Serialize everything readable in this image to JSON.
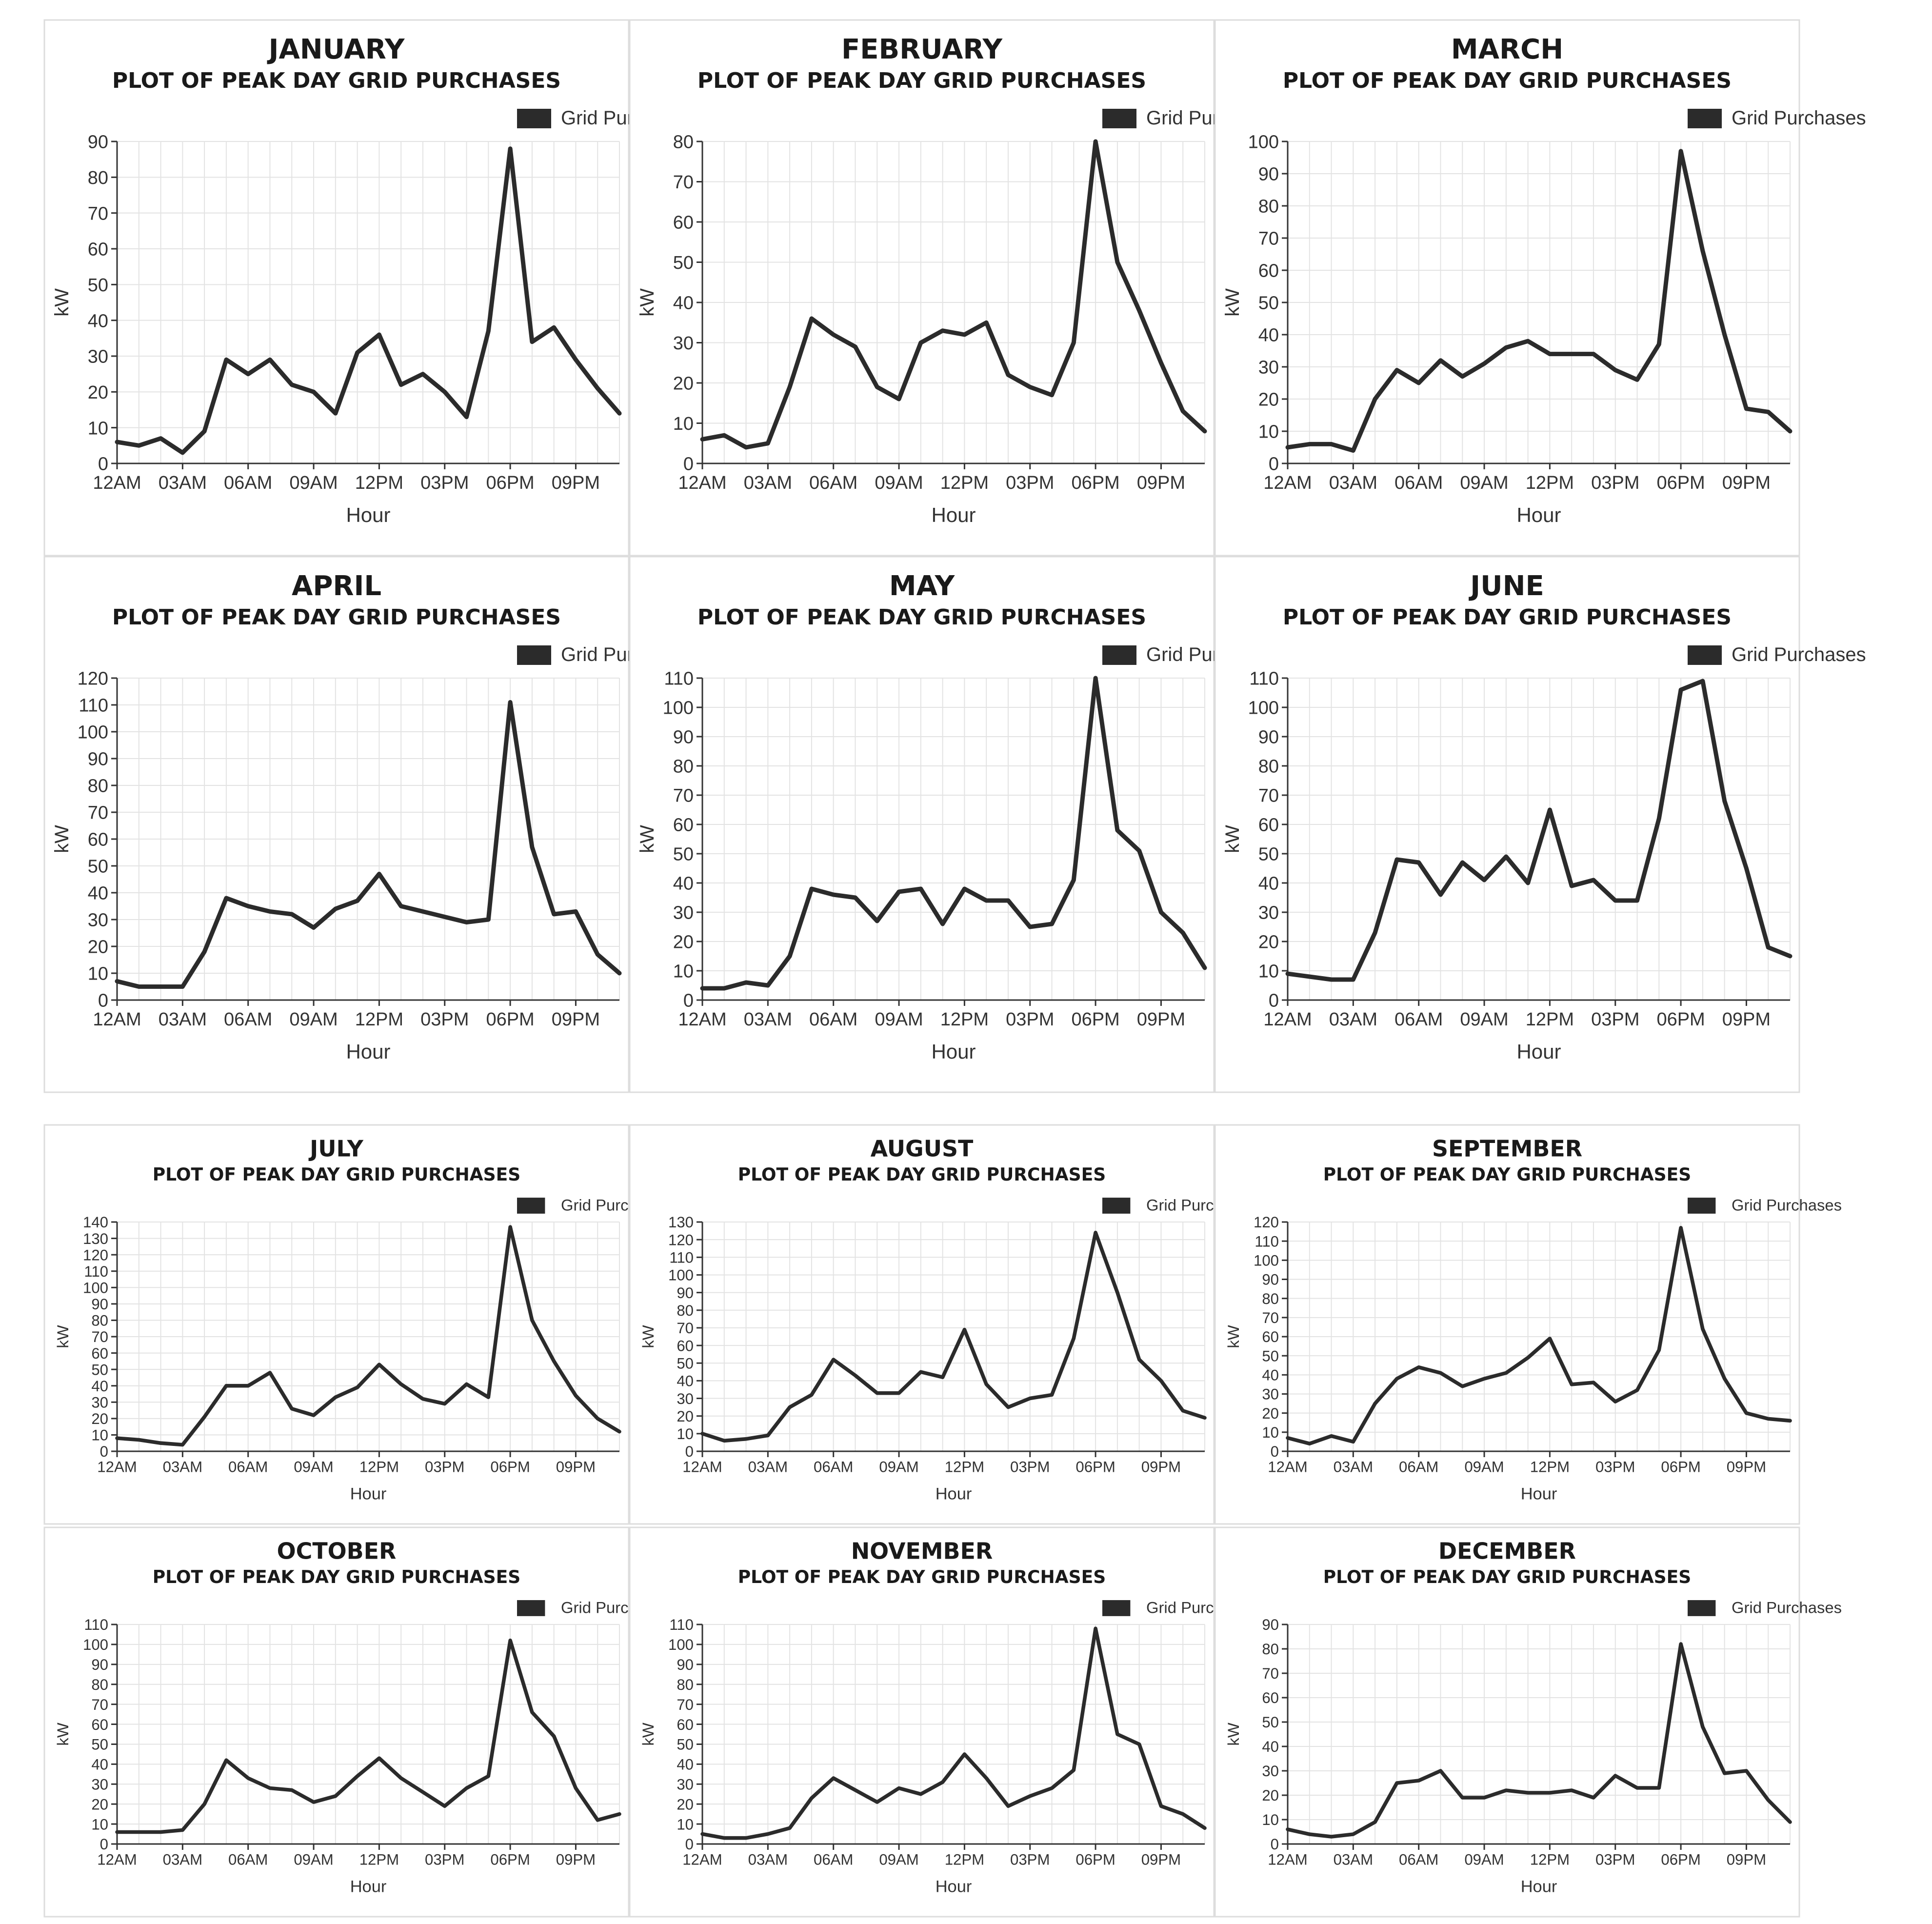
{
  "colors": {
    "line": "#2b2b2b",
    "grid": "#e3e3e3",
    "axis": "#333333",
    "frame": "#dddddd",
    "legend_swatch": "#2b2b2b"
  },
  "chart_data": [
    {
      "type": "line",
      "title": "JANUARY",
      "subtitle": "PLOT OF PEAK DAY GRID PURCHASES",
      "xlabel": "Hour",
      "ylabel": "kW",
      "legend": "Grid Purchases",
      "legend_position": "top-right",
      "ylim": [
        0,
        90
      ],
      "yticks": [
        0,
        10,
        20,
        30,
        40,
        50,
        60,
        70,
        80,
        90
      ],
      "xticks": [
        "12AM",
        "03AM",
        "06AM",
        "09AM",
        "12PM",
        "03PM",
        "06PM",
        "09PM"
      ],
      "values": [
        6,
        5,
        7,
        3,
        9,
        29,
        25,
        29,
        22,
        20,
        14,
        31,
        36,
        22,
        25,
        20,
        13,
        37,
        88,
        34,
        38,
        29,
        21,
        14
      ]
    },
    {
      "type": "line",
      "title": "FEBRUARY",
      "subtitle": "PLOT OF PEAK DAY GRID PURCHASES",
      "xlabel": "Hour",
      "ylabel": "kW",
      "legend": "Grid Purchases",
      "legend_position": "top-right",
      "ylim": [
        0,
        80
      ],
      "yticks": [
        0,
        10,
        20,
        30,
        40,
        50,
        60,
        70,
        80
      ],
      "xticks": [
        "12AM",
        "03AM",
        "06AM",
        "09AM",
        "12PM",
        "03PM",
        "06PM",
        "09PM"
      ],
      "values": [
        6,
        7,
        4,
        5,
        19,
        36,
        32,
        29,
        19,
        16,
        30,
        33,
        32,
        35,
        22,
        19,
        17,
        30,
        80,
        50,
        38,
        25,
        13,
        8
      ]
    },
    {
      "type": "line",
      "title": "MARCH",
      "subtitle": "PLOT OF PEAK DAY GRID PURCHASES",
      "xlabel": "Hour",
      "ylabel": "kW",
      "legend": "Grid Purchases",
      "legend_position": "top-right",
      "ylim": [
        0,
        100
      ],
      "yticks": [
        0,
        10,
        20,
        30,
        40,
        50,
        60,
        70,
        80,
        90,
        100
      ],
      "xticks": [
        "12AM",
        "03AM",
        "06AM",
        "09AM",
        "12PM",
        "03PM",
        "06PM",
        "09PM"
      ],
      "values": [
        5,
        6,
        6,
        4,
        20,
        29,
        25,
        32,
        27,
        31,
        36,
        38,
        34,
        34,
        34,
        29,
        26,
        37,
        97,
        66,
        40,
        17,
        16,
        10
      ]
    },
    {
      "type": "line",
      "title": "APRIL",
      "subtitle": "PLOT OF PEAK DAY GRID PURCHASES",
      "xlabel": "Hour",
      "ylabel": "kW",
      "legend": "Grid Purchases",
      "legend_position": "top-right",
      "ylim": [
        0,
        120
      ],
      "yticks": [
        0,
        10,
        20,
        30,
        40,
        50,
        60,
        70,
        80,
        90,
        100,
        110,
        120
      ],
      "xticks": [
        "12AM",
        "03AM",
        "06AM",
        "09AM",
        "12PM",
        "03PM",
        "06PM",
        "09PM"
      ],
      "values": [
        7,
        5,
        5,
        5,
        18,
        38,
        35,
        33,
        32,
        27,
        34,
        37,
        47,
        35,
        33,
        31,
        29,
        30,
        111,
        57,
        32,
        33,
        17,
        10
      ]
    },
    {
      "type": "line",
      "title": "MAY",
      "subtitle": "PLOT OF PEAK DAY GRID PURCHASES",
      "xlabel": "Hour",
      "ylabel": "kW",
      "legend": "Grid Purchases",
      "legend_position": "top-right",
      "ylim": [
        0,
        110
      ],
      "yticks": [
        0,
        10,
        20,
        30,
        40,
        50,
        60,
        70,
        80,
        90,
        100,
        110
      ],
      "xticks": [
        "12AM",
        "03AM",
        "06AM",
        "09AM",
        "12PM",
        "03PM",
        "06PM",
        "09PM"
      ],
      "values": [
        4,
        4,
        6,
        5,
        15,
        38,
        36,
        35,
        27,
        37,
        38,
        26,
        38,
        34,
        34,
        25,
        26,
        41,
        110,
        58,
        51,
        30,
        23,
        11
      ]
    },
    {
      "type": "line",
      "title": "JUNE",
      "subtitle": "PLOT OF PEAK DAY GRID PURCHASES",
      "xlabel": "Hour",
      "ylabel": "kW",
      "legend": "Grid Purchases",
      "legend_position": "top-right",
      "ylim": [
        0,
        110
      ],
      "yticks": [
        0,
        10,
        20,
        30,
        40,
        50,
        60,
        70,
        80,
        90,
        100,
        110
      ],
      "xticks": [
        "12AM",
        "03AM",
        "06AM",
        "09AM",
        "12PM",
        "03PM",
        "06PM",
        "09PM"
      ],
      "values": [
        9,
        8,
        7,
        7,
        23,
        48,
        47,
        36,
        47,
        41,
        49,
        40,
        65,
        39,
        41,
        34,
        34,
        62,
        106,
        109,
        68,
        45,
        18,
        15
      ]
    },
    {
      "type": "line",
      "title": "JULY",
      "subtitle": "PLOT OF PEAK DAY GRID PURCHASES",
      "xlabel": "Hour",
      "ylabel": "kW",
      "legend": "Grid Purchases",
      "legend_position": "top-right",
      "ylim": [
        0,
        140
      ],
      "yticks": [
        0,
        10,
        20,
        30,
        40,
        50,
        60,
        70,
        80,
        90,
        100,
        110,
        120,
        130,
        140
      ],
      "xticks": [
        "12AM",
        "03AM",
        "06AM",
        "09AM",
        "12PM",
        "03PM",
        "06PM",
        "09PM"
      ],
      "values": [
        8,
        7,
        5,
        4,
        21,
        40,
        40,
        48,
        26,
        22,
        33,
        39,
        53,
        41,
        32,
        29,
        41,
        33,
        137,
        80,
        55,
        34,
        20,
        12
      ]
    },
    {
      "type": "line",
      "title": "AUGUST",
      "subtitle": "PLOT OF PEAK DAY GRID PURCHASES",
      "xlabel": "Hour",
      "ylabel": "kW",
      "legend": "Grid Purchases",
      "legend_position": "top-right",
      "ylim": [
        0,
        130
      ],
      "yticks": [
        0,
        10,
        20,
        30,
        40,
        50,
        60,
        70,
        80,
        90,
        100,
        110,
        120,
        130
      ],
      "xticks": [
        "12AM",
        "03AM",
        "06AM",
        "09AM",
        "12PM",
        "03PM",
        "06PM",
        "09PM"
      ],
      "values": [
        10,
        6,
        7,
        9,
        25,
        32,
        52,
        43,
        33,
        33,
        45,
        42,
        69,
        38,
        25,
        30,
        32,
        64,
        124,
        90,
        52,
        40,
        23,
        19
      ]
    },
    {
      "type": "line",
      "title": "SEPTEMBER",
      "subtitle": "PLOT OF PEAK DAY GRID PURCHASES",
      "xlabel": "Hour",
      "ylabel": "kW",
      "legend": "Grid Purchases",
      "legend_position": "top-right",
      "ylim": [
        0,
        120
      ],
      "yticks": [
        0,
        10,
        20,
        30,
        40,
        50,
        60,
        70,
        80,
        90,
        100,
        110,
        120
      ],
      "xticks": [
        "12AM",
        "03AM",
        "06AM",
        "09AM",
        "12PM",
        "03PM",
        "06PM",
        "09PM"
      ],
      "values": [
        7,
        4,
        8,
        5,
        25,
        38,
        44,
        41,
        34,
        38,
        41,
        49,
        59,
        35,
        36,
        26,
        32,
        53,
        117,
        64,
        38,
        20,
        17,
        16
      ]
    },
    {
      "type": "line",
      "title": "OCTOBER",
      "subtitle": "PLOT OF PEAK DAY GRID PURCHASES",
      "xlabel": "Hour",
      "ylabel": "kW",
      "legend": "Grid Purchases",
      "legend_position": "top-right",
      "ylim": [
        0,
        110
      ],
      "yticks": [
        0,
        10,
        20,
        30,
        40,
        50,
        60,
        70,
        80,
        90,
        100,
        110
      ],
      "xticks": [
        "12AM",
        "03AM",
        "06AM",
        "09AM",
        "12PM",
        "03PM",
        "06PM",
        "09PM"
      ],
      "values": [
        6,
        6,
        6,
        7,
        20,
        42,
        33,
        28,
        27,
        21,
        24,
        34,
        43,
        33,
        26,
        19,
        28,
        34,
        102,
        66,
        54,
        28,
        12,
        15
      ]
    },
    {
      "type": "line",
      "title": "NOVEMBER",
      "subtitle": "PLOT OF PEAK DAY GRID PURCHASES",
      "xlabel": "Hour",
      "ylabel": "kW",
      "legend": "Grid Purchases",
      "legend_position": "top-right",
      "ylim": [
        0,
        110
      ],
      "yticks": [
        0,
        10,
        20,
        30,
        40,
        50,
        60,
        70,
        80,
        90,
        100,
        110
      ],
      "xticks": [
        "12AM",
        "03AM",
        "06AM",
        "09AM",
        "12PM",
        "03PM",
        "06PM",
        "09PM"
      ],
      "values": [
        5,
        3,
        3,
        5,
        8,
        23,
        33,
        27,
        21,
        28,
        25,
        31,
        45,
        33,
        19,
        24,
        28,
        37,
        108,
        55,
        50,
        19,
        15,
        8
      ]
    },
    {
      "type": "line",
      "title": "DECEMBER",
      "subtitle": "PLOT OF PEAK DAY GRID PURCHASES",
      "xlabel": "Hour",
      "ylabel": "kW",
      "legend": "Grid Purchases",
      "legend_position": "top-right",
      "ylim": [
        0,
        90
      ],
      "yticks": [
        0,
        10,
        20,
        30,
        40,
        50,
        60,
        70,
        80,
        90
      ],
      "xticks": [
        "12AM",
        "03AM",
        "06AM",
        "09AM",
        "12PM",
        "03PM",
        "06PM",
        "09PM"
      ],
      "values": [
        6,
        4,
        3,
        4,
        9,
        25,
        26,
        30,
        19,
        19,
        22,
        21,
        21,
        22,
        19,
        28,
        23,
        23,
        82,
        48,
        29,
        30,
        18,
        9
      ]
    }
  ]
}
